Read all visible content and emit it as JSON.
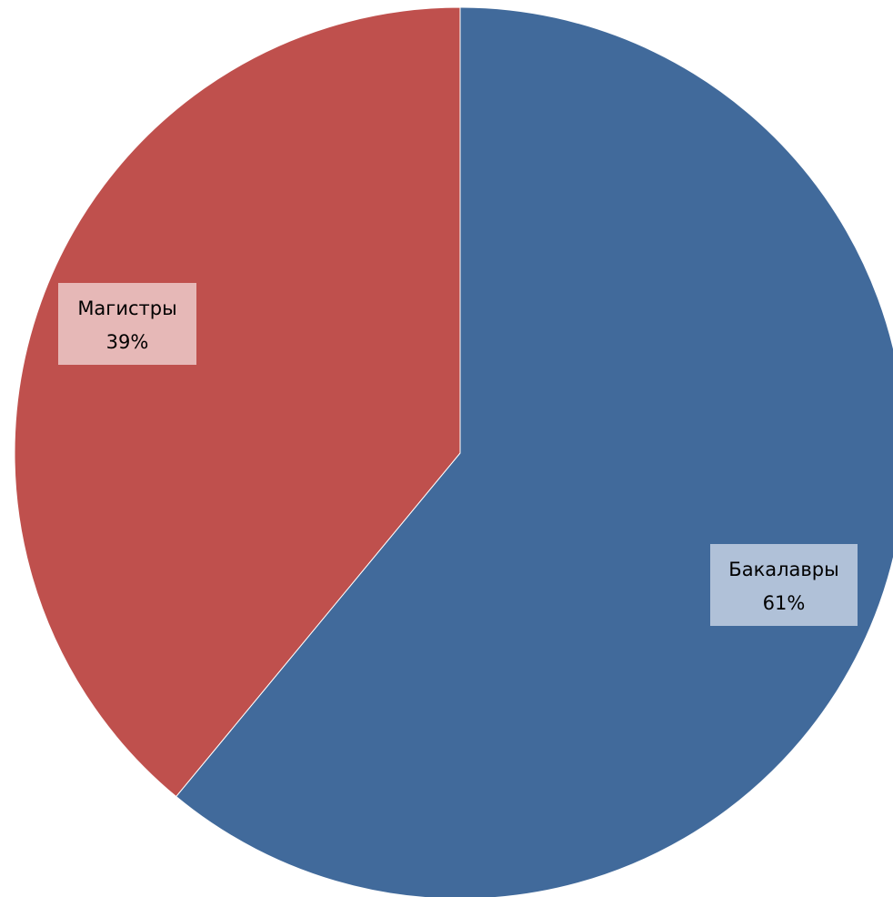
{
  "chart_data": {
    "type": "pie",
    "title": "",
    "slices": [
      {
        "label": "Бакалавры",
        "value": 61,
        "value_text": "61%",
        "color": "#416a9b",
        "label_bg": "#b0c1d8"
      },
      {
        "label": "Магистры",
        "value": 39,
        "value_text": "39%",
        "color": "#bf504d",
        "label_bg": "#e6b8b7"
      }
    ],
    "start": "12 o'clock",
    "direction": "clockwise",
    "legend": "none"
  }
}
